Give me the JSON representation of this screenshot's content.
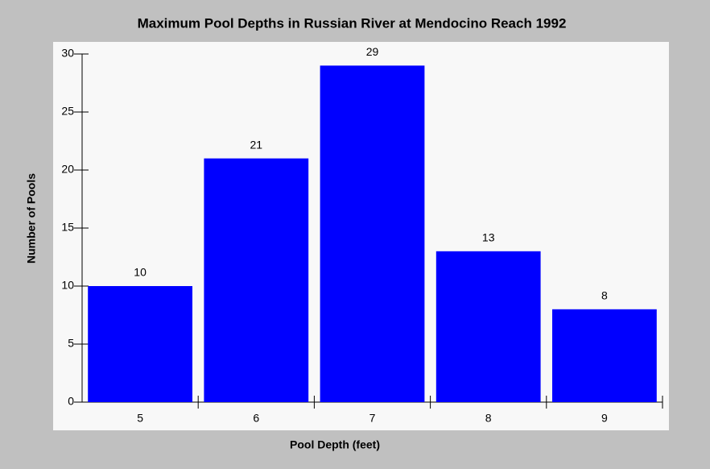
{
  "chart_data": {
    "type": "bar",
    "title": "Maximum Pool Depths in Russian River at Mendocino Reach 1992",
    "x_label": "Pool Depth (feet)",
    "y_label": "Number of Pools",
    "categories": [
      "5",
      "6",
      "7",
      "8",
      "9"
    ],
    "values": [
      10,
      21,
      29,
      13,
      8
    ],
    "color": "#0000ff",
    "ylim": [
      0,
      30
    ],
    "yticks": [
      0,
      5,
      10,
      15,
      20,
      25,
      30
    ],
    "grid": false,
    "value_labels_shown": true
  }
}
